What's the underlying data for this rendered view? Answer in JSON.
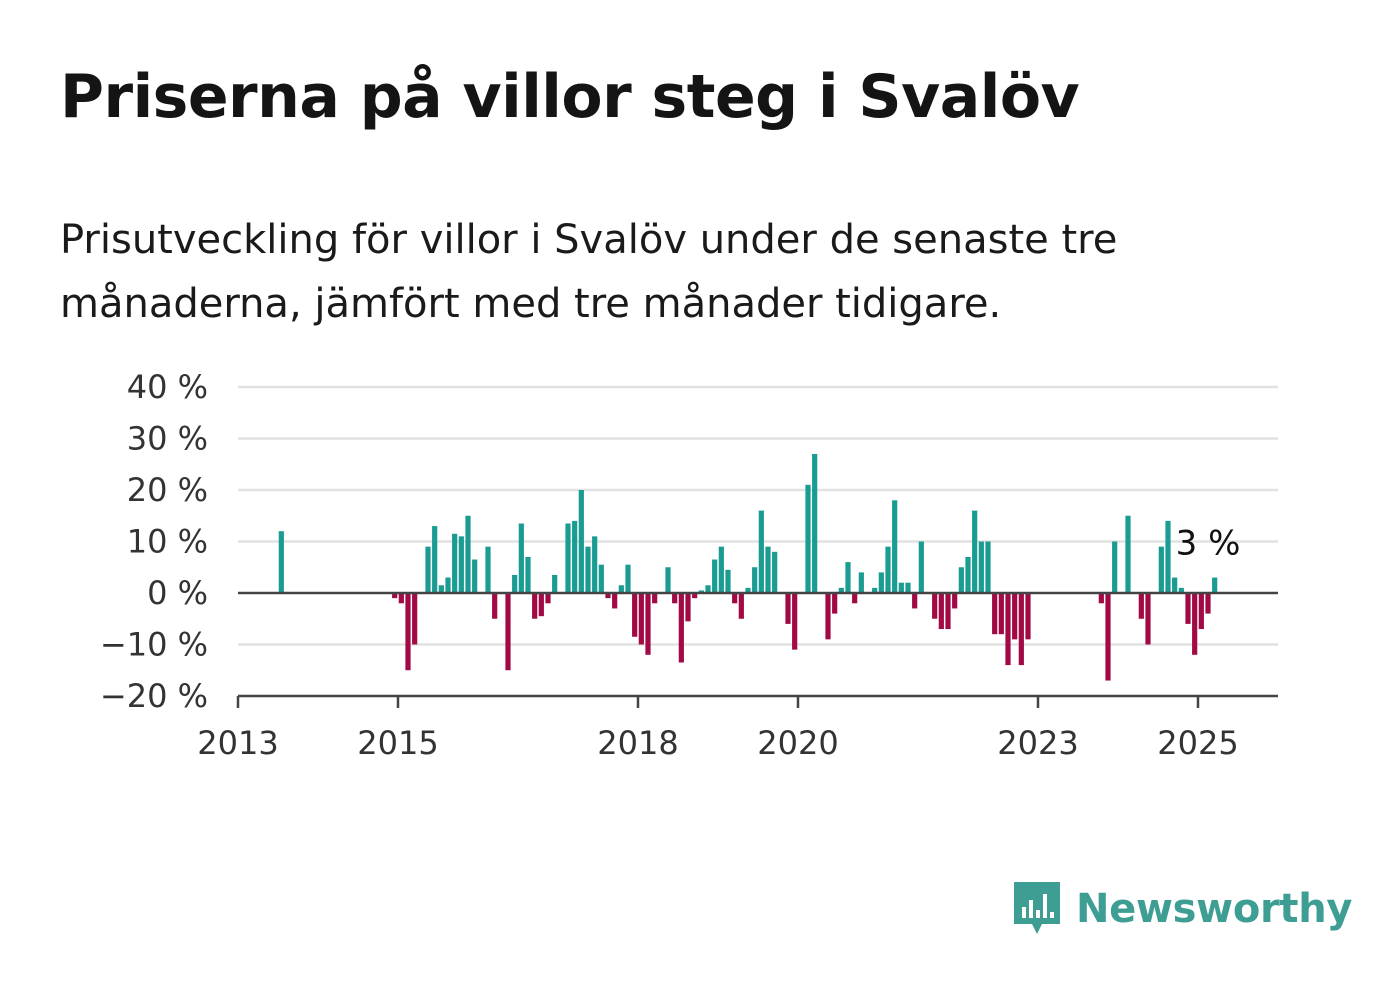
{
  "title": "Priserna på villor steg i Svalöv",
  "subtitle": "Prisutveckling för villor i Svalöv under de senaste tre månaderna, jämfört med tre månader tidigare.",
  "brand": {
    "name": "Newsworthy",
    "icon": "newsworthy-chart-icon",
    "color": "#3e9e94"
  },
  "colors": {
    "positive": "#1a9c92",
    "negative": "#a20a45",
    "grid": "#e2e2e2",
    "axis": "#444444"
  },
  "chart_data": {
    "type": "bar",
    "title": "",
    "xlabel": "",
    "ylabel": "",
    "ylim": [
      -20,
      40
    ],
    "xlim": [
      "2013-01",
      "2026-01"
    ],
    "yticks": [
      40,
      30,
      20,
      10,
      0,
      -10,
      -20
    ],
    "ytick_labels": [
      "40 %",
      "30 %",
      "20 %",
      "10 %",
      "0 %",
      "−10 %",
      "−20 %"
    ],
    "xticks": [
      "2013-01",
      "2015-01",
      "2018-01",
      "2020-01",
      "2023-01",
      "2025-01"
    ],
    "xtick_labels": [
      "2013",
      "2015",
      "2018",
      "2020",
      "2023",
      "2025"
    ],
    "grid": true,
    "legend": "none",
    "annotation": {
      "text": "3 %",
      "x": "2025-01"
    },
    "data": [
      {
        "x": "2013-07",
        "v": 12
      },
      {
        "x": "2014-12",
        "v": -1
      },
      {
        "x": "2015-01",
        "v": -2
      },
      {
        "x": "2015-02",
        "v": -15
      },
      {
        "x": "2015-03",
        "v": -10
      },
      {
        "x": "2015-05",
        "v": 9
      },
      {
        "x": "2015-06",
        "v": 13
      },
      {
        "x": "2015-07",
        "v": 1.5
      },
      {
        "x": "2015-08",
        "v": 3
      },
      {
        "x": "2015-09",
        "v": 11.5
      },
      {
        "x": "2015-10",
        "v": 11
      },
      {
        "x": "2015-11",
        "v": 15
      },
      {
        "x": "2015-12",
        "v": 6.5
      },
      {
        "x": "2016-02",
        "v": 9
      },
      {
        "x": "2016-03",
        "v": -5
      },
      {
        "x": "2016-05",
        "v": -15
      },
      {
        "x": "2016-06",
        "v": 3.5
      },
      {
        "x": "2016-07",
        "v": 13.5
      },
      {
        "x": "2016-08",
        "v": 7
      },
      {
        "x": "2016-09",
        "v": -5
      },
      {
        "x": "2016-10",
        "v": -4.5
      },
      {
        "x": "2016-11",
        "v": -2
      },
      {
        "x": "2016-12",
        "v": 3.5
      },
      {
        "x": "2017-02",
        "v": 13.5
      },
      {
        "x": "2017-03",
        "v": 14
      },
      {
        "x": "2017-04",
        "v": 20
      },
      {
        "x": "2017-05",
        "v": 9
      },
      {
        "x": "2017-06",
        "v": 11
      },
      {
        "x": "2017-07",
        "v": 5.5
      },
      {
        "x": "2017-08",
        "v": -1
      },
      {
        "x": "2017-09",
        "v": -3
      },
      {
        "x": "2017-10",
        "v": 1.5
      },
      {
        "x": "2017-11",
        "v": 5.5
      },
      {
        "x": "2017-12",
        "v": -8.5
      },
      {
        "x": "2018-01",
        "v": -10
      },
      {
        "x": "2018-02",
        "v": -12
      },
      {
        "x": "2018-03",
        "v": -2
      },
      {
        "x": "2018-05",
        "v": 5
      },
      {
        "x": "2018-06",
        "v": -2
      },
      {
        "x": "2018-07",
        "v": -13.5
      },
      {
        "x": "2018-08",
        "v": -5.5
      },
      {
        "x": "2018-09",
        "v": -1
      },
      {
        "x": "2018-10",
        "v": 0.5
      },
      {
        "x": "2018-11",
        "v": 1.5
      },
      {
        "x": "2018-12",
        "v": 6.5
      },
      {
        "x": "2019-01",
        "v": 9
      },
      {
        "x": "2019-02",
        "v": 4.5
      },
      {
        "x": "2019-03",
        "v": -2
      },
      {
        "x": "2019-04",
        "v": -5
      },
      {
        "x": "2019-05",
        "v": 1
      },
      {
        "x": "2019-06",
        "v": 5
      },
      {
        "x": "2019-07",
        "v": 16
      },
      {
        "x": "2019-08",
        "v": 9
      },
      {
        "x": "2019-09",
        "v": 8
      },
      {
        "x": "2019-11",
        "v": -6
      },
      {
        "x": "2019-12",
        "v": -11
      },
      {
        "x": "2020-02",
        "v": 21
      },
      {
        "x": "2020-03",
        "v": 27
      },
      {
        "x": "2020-05",
        "v": -9
      },
      {
        "x": "2020-06",
        "v": -4
      },
      {
        "x": "2020-07",
        "v": 1
      },
      {
        "x": "2020-08",
        "v": 6
      },
      {
        "x": "2020-09",
        "v": -2
      },
      {
        "x": "2020-10",
        "v": 4
      },
      {
        "x": "2020-12",
        "v": 1
      },
      {
        "x": "2021-01",
        "v": 4
      },
      {
        "x": "2021-02",
        "v": 9
      },
      {
        "x": "2021-03",
        "v": 18
      },
      {
        "x": "2021-04",
        "v": 2
      },
      {
        "x": "2021-05",
        "v": 2
      },
      {
        "x": "2021-06",
        "v": -3
      },
      {
        "x": "2021-07",
        "v": 10
      },
      {
        "x": "2021-09",
        "v": -5
      },
      {
        "x": "2021-10",
        "v": -7
      },
      {
        "x": "2021-11",
        "v": -7
      },
      {
        "x": "2021-12",
        "v": -3
      },
      {
        "x": "2022-01",
        "v": 5
      },
      {
        "x": "2022-02",
        "v": 7
      },
      {
        "x": "2022-03",
        "v": 16
      },
      {
        "x": "2022-04",
        "v": 10
      },
      {
        "x": "2022-05",
        "v": 10
      },
      {
        "x": "2022-06",
        "v": -8
      },
      {
        "x": "2022-07",
        "v": -8
      },
      {
        "x": "2022-08",
        "v": -14
      },
      {
        "x": "2022-09",
        "v": -9
      },
      {
        "x": "2022-10",
        "v": -14
      },
      {
        "x": "2022-11",
        "v": -9
      },
      {
        "x": "2023-10",
        "v": -2
      },
      {
        "x": "2023-11",
        "v": -17
      },
      {
        "x": "2023-12",
        "v": 10
      },
      {
        "x": "2024-02",
        "v": 15
      },
      {
        "x": "2024-04",
        "v": -5
      },
      {
        "x": "2024-05",
        "v": -10
      },
      {
        "x": "2024-07",
        "v": 9
      },
      {
        "x": "2024-08",
        "v": 14
      },
      {
        "x": "2024-09",
        "v": 3
      },
      {
        "x": "2024-10",
        "v": 1
      },
      {
        "x": "2024-11",
        "v": -6
      },
      {
        "x": "2024-12",
        "v": -12
      },
      {
        "x": "2025-01",
        "v": -7
      },
      {
        "x": "2025-02",
        "v": -4
      },
      {
        "x": "2025-03",
        "v": 3
      }
    ]
  }
}
